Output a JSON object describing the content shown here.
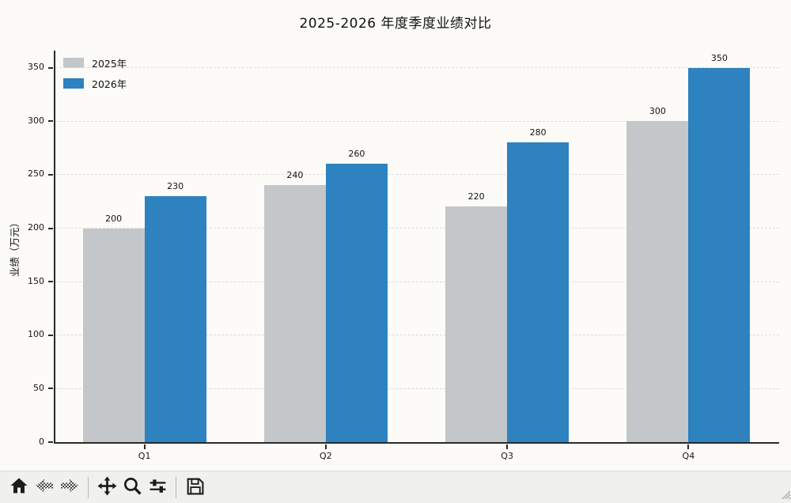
{
  "chart_data": {
    "type": "bar",
    "title": "2025-2026 年度季度业绩对比",
    "ylabel": "业绩（万元）",
    "categories": [
      "Q1",
      "Q2",
      "Q3",
      "Q4"
    ],
    "series": [
      {
        "name": "2025年",
        "color": "#c3c7ca",
        "values": [
          200,
          240,
          220,
          300
        ]
      },
      {
        "name": "2026年",
        "color": "#2e82c0",
        "values": [
          230,
          260,
          280,
          350
        ]
      }
    ],
    "bar_labels": true,
    "yticks": [
      0,
      50,
      100,
      150,
      200,
      250,
      300,
      350
    ],
    "ylim": [
      0,
      366
    ],
    "xlim_slots": 4,
    "grid": "horizontal-dashed",
    "grid_color": "#dcdcda",
    "legend_position": "upper-left",
    "axis_color": "#2a2a2a",
    "background_color": "#fcfbf7"
  },
  "toolbar": {
    "buttons": [
      {
        "name": "home",
        "disabled": false
      },
      {
        "name": "back",
        "disabled": true
      },
      {
        "name": "forward",
        "disabled": true
      },
      {
        "name": "pan",
        "disabled": false
      },
      {
        "name": "zoom",
        "disabled": false
      },
      {
        "name": "configure-subplots",
        "disabled": false
      },
      {
        "name": "save",
        "disabled": false
      }
    ]
  }
}
